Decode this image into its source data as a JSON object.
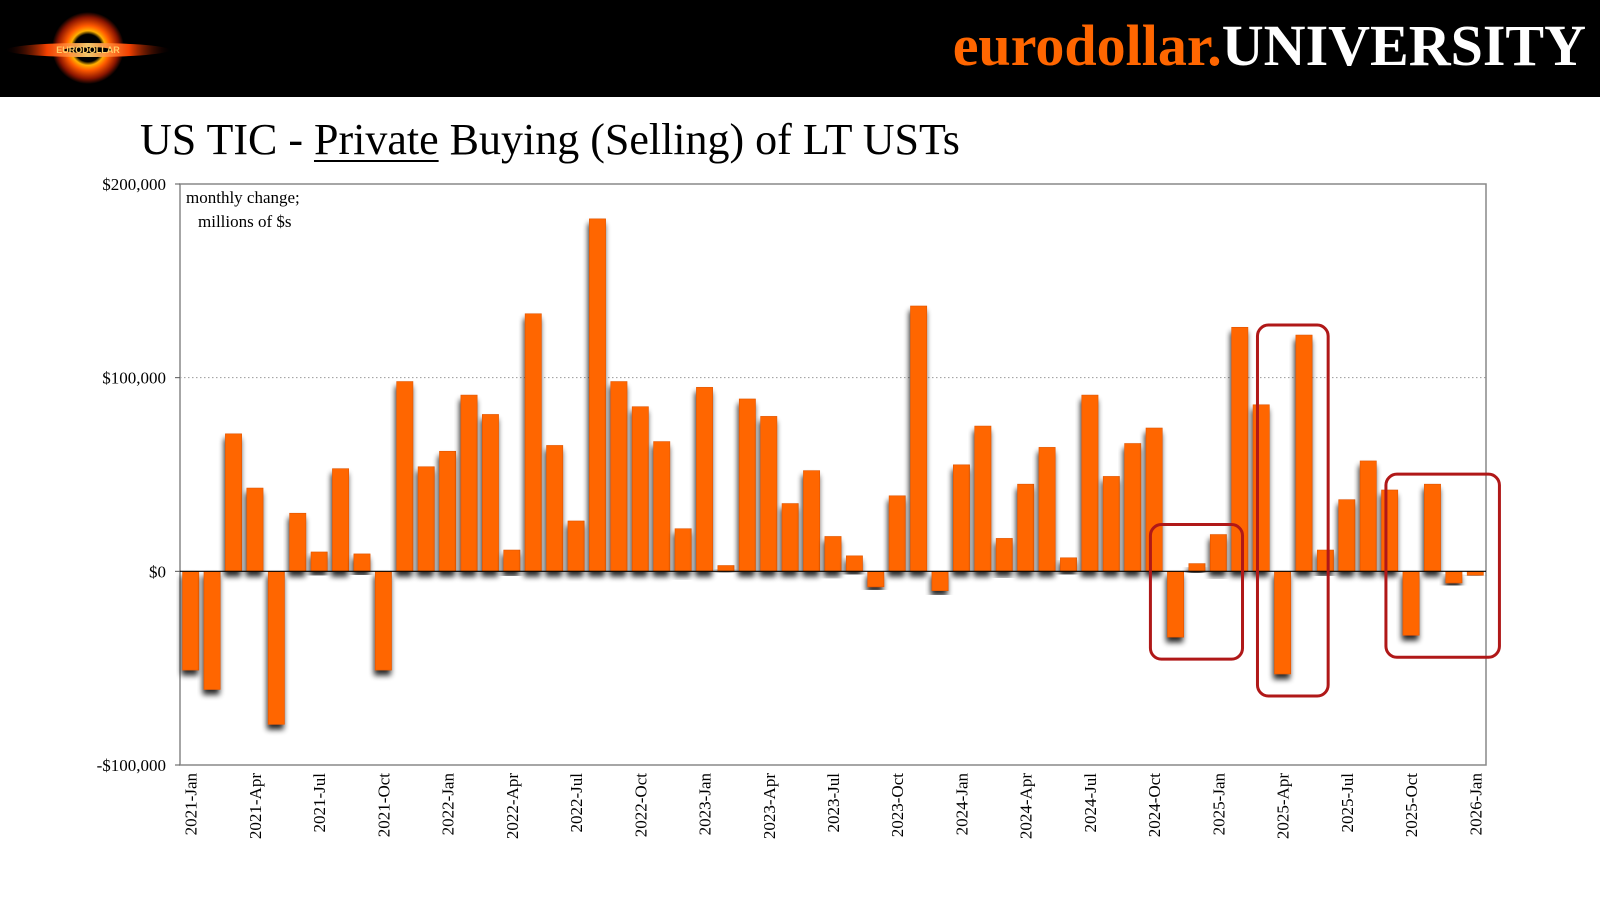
{
  "banner": {
    "brand_orange": "eurodollar.",
    "brand_white": "UNIVERSITY",
    "logo_text": "EURODOLLAR",
    "logo_icon": "black-hole-icon"
  },
  "title": {
    "prefix": "US TIC - ",
    "underlined": "Private",
    "suffix": " Buying (Selling) of LT USTs"
  },
  "colors": {
    "bar": "#ff6600",
    "bar_edge": "#e05500",
    "highlight": "#b01818",
    "brand_orange": "#ff6600"
  },
  "chart_data": {
    "type": "bar",
    "annotation": [
      "monthly change;",
      "millions of $s"
    ],
    "ylim": [
      -100000,
      200000
    ],
    "yticks": [
      200000,
      100000,
      0,
      -100000
    ],
    "ytick_labels": [
      "$200,000",
      "$100,000",
      "$0",
      "-$100,000"
    ],
    "grid": "horizontal dotted at $100,000",
    "xlabel_every": 3,
    "xtick_labels": [
      "2021-Jan",
      "2021-Apr",
      "2021-Jul",
      "2021-Oct",
      "2022-Jan",
      "2022-Apr",
      "2022-Jul",
      "2022-Oct",
      "2023-Jan",
      "2023-Apr",
      "2023-Jul",
      "2023-Oct",
      "2024-Jan",
      "2024-Apr",
      "2024-Jul",
      "2024-Oct",
      "2025-Jan",
      "2025-Apr",
      "2025-Jul",
      "2025-Oct",
      "2026-Jan"
    ],
    "categories": [
      "2021-Jan",
      "2021-Feb",
      "2021-Mar",
      "2021-Apr",
      "2021-May",
      "2021-Jun",
      "2021-Jul",
      "2021-Aug",
      "2021-Sep",
      "2021-Oct",
      "2021-Nov",
      "2021-Dec",
      "2022-Jan",
      "2022-Feb",
      "2022-Mar",
      "2022-Apr",
      "2022-May",
      "2022-Jun",
      "2022-Jul",
      "2022-Aug",
      "2022-Sep",
      "2022-Oct",
      "2022-Nov",
      "2022-Dec",
      "2023-Jan",
      "2023-Feb",
      "2023-Mar",
      "2023-Apr",
      "2023-May",
      "2023-Jun",
      "2023-Jul",
      "2023-Aug",
      "2023-Sep",
      "2023-Oct",
      "2023-Nov",
      "2023-Dec",
      "2024-Jan",
      "2024-Feb",
      "2024-Mar",
      "2024-Apr",
      "2024-May",
      "2024-Jun",
      "2024-Jul",
      "2024-Aug",
      "2024-Sep",
      "2024-Oct",
      "2024-Nov",
      "2024-Dec",
      "2025-Jan",
      "2025-Feb",
      "2025-Mar",
      "2025-Apr",
      "2025-May",
      "2025-Jun",
      "2025-Jul",
      "2025-Aug",
      "2025-Sep",
      "2025-Oct",
      "2025-Nov",
      "2025-Dec",
      "2026-Jan"
    ],
    "values": [
      -51000,
      -61000,
      71000,
      43000,
      -79000,
      30000,
      10000,
      53000,
      9000,
      -51000,
      98000,
      54000,
      62000,
      91000,
      81000,
      11000,
      133000,
      65000,
      26000,
      182000,
      98000,
      85000,
      67000,
      22000,
      95000,
      3000,
      89000,
      80000,
      35000,
      52000,
      18000,
      8000,
      -8000,
      39000,
      137000,
      -10000,
      55000,
      75000,
      17000,
      45000,
      64000,
      7000,
      91000,
      49000,
      66000,
      74000,
      -34000,
      4000,
      19000,
      126000,
      86000,
      -53000,
      122000,
      11000,
      37000,
      57000,
      42000,
      -33000,
      45000,
      -6000,
      -2000
    ],
    "highlights": [
      {
        "from": "2024-Nov",
        "to": "2025-Jan"
      },
      {
        "from": "2025-Apr",
        "to": "2025-May"
      },
      {
        "from": "2025-Oct",
        "to": "2026-Jan"
      }
    ]
  }
}
